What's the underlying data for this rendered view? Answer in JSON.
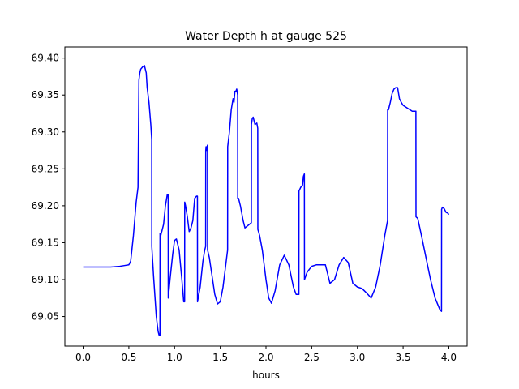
{
  "chart_data": {
    "type": "line",
    "title": "Water Depth h at gauge 525",
    "xlabel": "hours",
    "ylabel": "",
    "xlim": [
      -0.2,
      4.2
    ],
    "ylim": [
      69.01,
      69.415
    ],
    "xticks": [
      0.0,
      0.5,
      1.0,
      1.5,
      2.0,
      2.5,
      3.0,
      3.5,
      4.0
    ],
    "xtick_labels": [
      "0.0",
      "0.5",
      "1.0",
      "1.5",
      "2.0",
      "2.5",
      "3.0",
      "3.5",
      "4.0"
    ],
    "yticks": [
      69.05,
      69.1,
      69.15,
      69.2,
      69.25,
      69.3,
      69.35,
      69.4
    ],
    "ytick_labels": [
      "69.05",
      "69.10",
      "69.15",
      "69.20",
      "69.25",
      "69.30",
      "69.35",
      "69.40"
    ],
    "grid": false,
    "line_color": "#0000ff",
    "series": [
      {
        "name": "",
        "x": [
          0.0,
          0.1,
          0.2,
          0.3,
          0.4,
          0.45,
          0.5,
          0.52,
          0.55,
          0.58,
          0.6,
          0.61,
          0.62,
          0.63,
          0.65,
          0.67,
          0.69,
          0.7,
          0.72,
          0.74,
          0.75,
          0.751,
          0.77,
          0.8,
          0.82,
          0.83,
          0.84,
          0.841,
          0.85,
          0.855,
          0.86,
          0.88,
          0.9,
          0.92,
          0.93,
          0.931,
          0.95,
          0.98,
          1.0,
          1.02,
          1.05,
          1.08,
          1.1,
          1.11,
          1.111,
          1.12,
          1.14,
          1.16,
          1.18,
          1.2,
          1.22,
          1.24,
          1.25,
          1.251,
          1.28,
          1.31,
          1.33,
          1.34,
          1.341,
          1.345,
          1.35,
          1.36,
          1.361,
          1.38,
          1.41,
          1.44,
          1.47,
          1.5,
          1.53,
          1.56,
          1.58,
          1.581,
          1.6,
          1.62,
          1.64,
          1.65,
          1.66,
          1.67,
          1.68,
          1.69,
          1.691,
          1.7,
          1.72,
          1.75,
          1.77,
          1.79,
          1.82,
          1.84,
          1.841,
          1.85,
          1.86,
          1.88,
          1.9,
          1.91,
          1.911,
          1.93,
          1.96,
          2.0,
          2.03,
          2.06,
          2.1,
          2.15,
          2.2,
          2.25,
          2.3,
          2.33,
          2.35,
          2.36,
          2.361,
          2.38,
          2.4,
          2.41,
          2.42,
          2.421,
          2.45,
          2.5,
          2.55,
          2.6,
          2.65,
          2.7,
          2.75,
          2.8,
          2.85,
          2.9,
          2.95,
          3.0,
          3.05,
          3.1,
          3.15,
          3.2,
          3.25,
          3.3,
          3.33,
          3.331,
          3.34,
          3.36,
          3.38,
          3.4,
          3.42,
          3.44,
          3.46,
          3.48,
          3.5,
          3.55,
          3.6,
          3.64,
          3.641,
          3.66,
          3.7,
          3.75,
          3.8,
          3.85,
          3.9,
          3.92,
          3.921,
          3.93,
          3.95,
          3.97,
          3.99,
          4.0
        ],
        "y": [
          69.117,
          69.117,
          69.117,
          69.117,
          69.118,
          69.119,
          69.12,
          69.125,
          69.16,
          69.205,
          69.225,
          69.37,
          69.38,
          69.385,
          69.388,
          69.39,
          69.38,
          69.36,
          69.34,
          69.31,
          69.29,
          69.145,
          69.105,
          69.05,
          69.03,
          69.025,
          69.024,
          69.163,
          69.16,
          69.163,
          69.165,
          69.175,
          69.2,
          69.215,
          69.215,
          69.075,
          69.1,
          69.135,
          69.153,
          69.155,
          69.14,
          69.1,
          69.07,
          69.07,
          69.205,
          69.2,
          69.185,
          69.165,
          69.17,
          69.18,
          69.21,
          69.213,
          69.213,
          69.07,
          69.09,
          69.125,
          69.14,
          69.145,
          69.275,
          69.28,
          69.275,
          69.282,
          69.14,
          69.13,
          69.105,
          69.08,
          69.067,
          69.07,
          69.09,
          69.12,
          69.14,
          69.28,
          69.3,
          69.33,
          69.345,
          69.34,
          69.355,
          69.355,
          69.358,
          69.35,
          69.21,
          69.21,
          69.2,
          69.18,
          69.17,
          69.172,
          69.175,
          69.177,
          69.31,
          69.318,
          69.32,
          69.31,
          69.312,
          69.305,
          69.168,
          69.16,
          69.14,
          69.1,
          69.075,
          69.068,
          69.085,
          69.12,
          69.133,
          69.12,
          69.09,
          69.08,
          69.08,
          69.08,
          69.22,
          69.225,
          69.228,
          69.24,
          69.243,
          69.1,
          69.11,
          69.118,
          69.12,
          69.12,
          69.12,
          69.095,
          69.1,
          69.12,
          69.13,
          69.123,
          69.095,
          69.09,
          69.088,
          69.082,
          69.075,
          69.09,
          69.12,
          69.16,
          69.18,
          69.33,
          69.33,
          69.34,
          69.352,
          69.358,
          69.36,
          69.36,
          69.345,
          69.34,
          69.336,
          69.332,
          69.328,
          69.328,
          69.185,
          69.183,
          69.16,
          69.13,
          69.1,
          69.075,
          69.06,
          69.057,
          69.195,
          69.198,
          69.196,
          69.191,
          69.19,
          69.188
        ]
      }
    ]
  }
}
